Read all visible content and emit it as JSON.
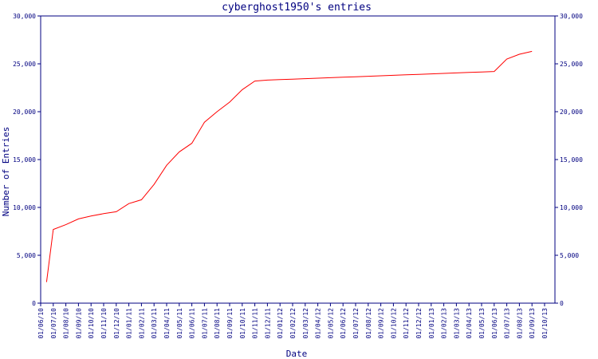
{
  "chart_data": {
    "type": "line",
    "title": "cyberghost1950's entries",
    "xlabel": "Date",
    "ylabel": "Number of Entries",
    "ylim": [
      0,
      30000
    ],
    "y_ticks": [
      0,
      5000,
      10000,
      15000,
      20000,
      25000,
      30000
    ],
    "y_tick_labels": [
      "0",
      "5,000",
      "10,000",
      "15,000",
      "20,000",
      "25,000",
      "30,000"
    ],
    "right_axis": true,
    "grid": false,
    "colors": {
      "axis": "#000080",
      "line": "#ff0000",
      "background": "#ffffff"
    },
    "x_tick_labels": [
      "01/06/10",
      "01/07/10",
      "01/08/10",
      "01/09/10",
      "01/10/10",
      "01/11/10",
      "01/12/10",
      "01/01/11",
      "01/02/11",
      "01/03/11",
      "01/04/11",
      "01/05/11",
      "01/06/11",
      "01/07/11",
      "01/08/11",
      "01/09/11",
      "01/10/11",
      "01/11/11",
      "01/12/11",
      "01/01/12",
      "01/02/12",
      "01/03/12",
      "01/04/12",
      "01/05/12",
      "01/06/12",
      "01/07/12",
      "01/08/12",
      "01/09/12",
      "01/10/12",
      "01/11/12",
      "01/12/12",
      "01/01/13",
      "01/02/13",
      "01/03/13",
      "01/04/13",
      "01/05/13",
      "01/06/13",
      "01/07/13",
      "01/08/13",
      "01/09/13",
      "01/10/13"
    ],
    "series": [
      {
        "x": [
          "2010-06-15",
          "2010-07-01",
          "2010-08-01",
          "2010-09-01",
          "2010-10-01",
          "2010-11-01",
          "2010-12-01",
          "2011-01-01",
          "2011-02-01",
          "2011-03-01",
          "2011-04-01",
          "2011-05-01",
          "2011-06-01",
          "2011-07-01",
          "2011-08-01",
          "2011-09-01",
          "2011-10-01",
          "2011-11-01",
          "2011-12-01",
          "2012-01-01",
          "2012-02-01",
          "2012-03-01",
          "2012-04-01",
          "2012-05-01",
          "2012-06-01",
          "2012-07-01",
          "2012-08-01",
          "2012-09-01",
          "2012-10-01",
          "2012-11-01",
          "2012-12-01",
          "2013-01-01",
          "2013-02-01",
          "2013-03-01",
          "2013-04-01",
          "2013-05-01",
          "2013-06-01",
          "2013-07-01",
          "2013-08-01",
          "2013-09-01"
        ],
        "y": [
          2200,
          7700,
          8200,
          8800,
          9100,
          9350,
          9550,
          10400,
          10800,
          12400,
          14400,
          15800,
          16700,
          18900,
          20000,
          21000,
          22300,
          23200,
          23300,
          23350,
          23400,
          23450,
          23500,
          23550,
          23600,
          23650,
          23700,
          23750,
          23800,
          23850,
          23900,
          23950,
          24000,
          24050,
          24100,
          24150,
          24200,
          25500,
          26000,
          26300
        ]
      }
    ]
  }
}
